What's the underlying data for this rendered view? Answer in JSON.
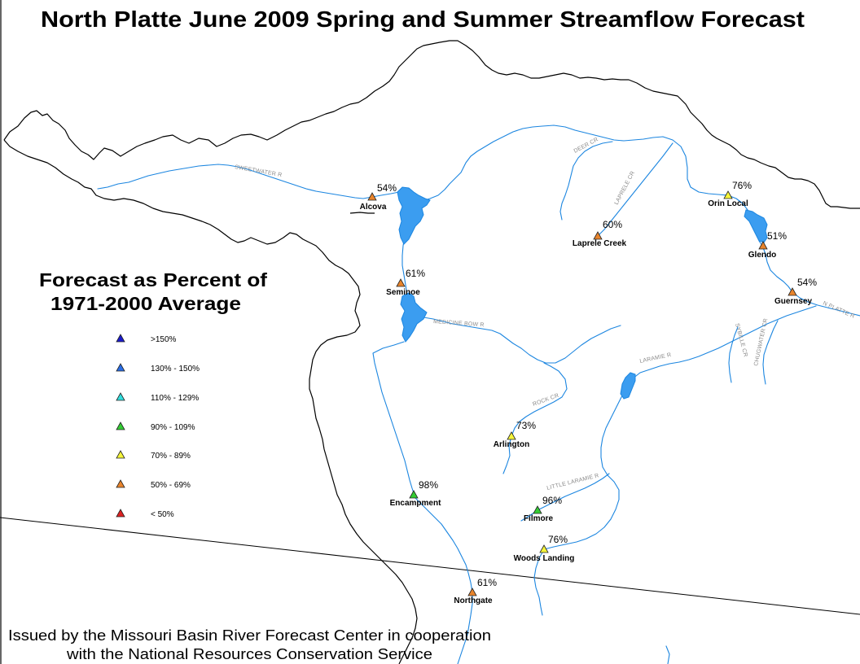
{
  "title": "North Platte June 2009 Spring and Summer Streamflow Forecast",
  "legend": {
    "title_line1": "Forecast as Percent of",
    "title_line2": "1971-2000 Average",
    "items": [
      {
        "label": ">150%",
        "color": "#1a1acc"
      },
      {
        "label": "130% - 150%",
        "color": "#2a6ee6"
      },
      {
        "label": "110% - 129%",
        "color": "#33dede"
      },
      {
        "label": "90% - 109%",
        "color": "#33cc33"
      },
      {
        "label": "70% - 89%",
        "color": "#f5f53a"
      },
      {
        "label": "50% - 69%",
        "color": "#e8842c"
      },
      {
        "label": "< 50%",
        "color": "#dd2222"
      }
    ]
  },
  "stations": [
    {
      "name": "Alcova",
      "percent": "54%",
      "color": "#e8842c"
    },
    {
      "name": "Seminoe",
      "percent": "61%",
      "color": "#e8842c"
    },
    {
      "name": "Orin Local",
      "percent": "76%",
      "color": "#f5f53a"
    },
    {
      "name": "Laprele Creek",
      "percent": "60%",
      "color": "#e8842c"
    },
    {
      "name": "Glendo",
      "percent": "51%",
      "color": "#e8842c"
    },
    {
      "name": "Guernsey",
      "percent": "54%",
      "color": "#e8842c"
    },
    {
      "name": "Arlington",
      "percent": "73%",
      "color": "#f5f53a"
    },
    {
      "name": "Encampment",
      "percent": "98%",
      "color": "#33cc33"
    },
    {
      "name": "Filmore",
      "percent": "96%",
      "color": "#33cc33"
    },
    {
      "name": "Woods Landing",
      "percent": "76%",
      "color": "#f5f53a"
    },
    {
      "name": "Northgate",
      "percent": "61%",
      "color": "#e8842c"
    }
  ],
  "river_labels": {
    "sweetwater": "SWEETWATER R",
    "deer": "DEER CR",
    "laprele": "LAPRELE CR",
    "medicine_bow": "MEDICINE BOW R",
    "rock": "ROCK CR",
    "laramie": "LARAMIE R",
    "sybille": "SYBILLE CR",
    "chugwater": "CHUGWATER CR",
    "north_platte": "N PLATTE R",
    "little_laramie": "LITTLE LARAMIE R"
  },
  "footer": {
    "line1": "Issued by the Missouri Basin River Forecast Center in cooperation",
    "line2": "with the National Resources Conservation Service"
  },
  "colors": {
    "river": "#1c86e0",
    "reservoir": "#3b9df0",
    "river_label": "#8a8a8a"
  }
}
